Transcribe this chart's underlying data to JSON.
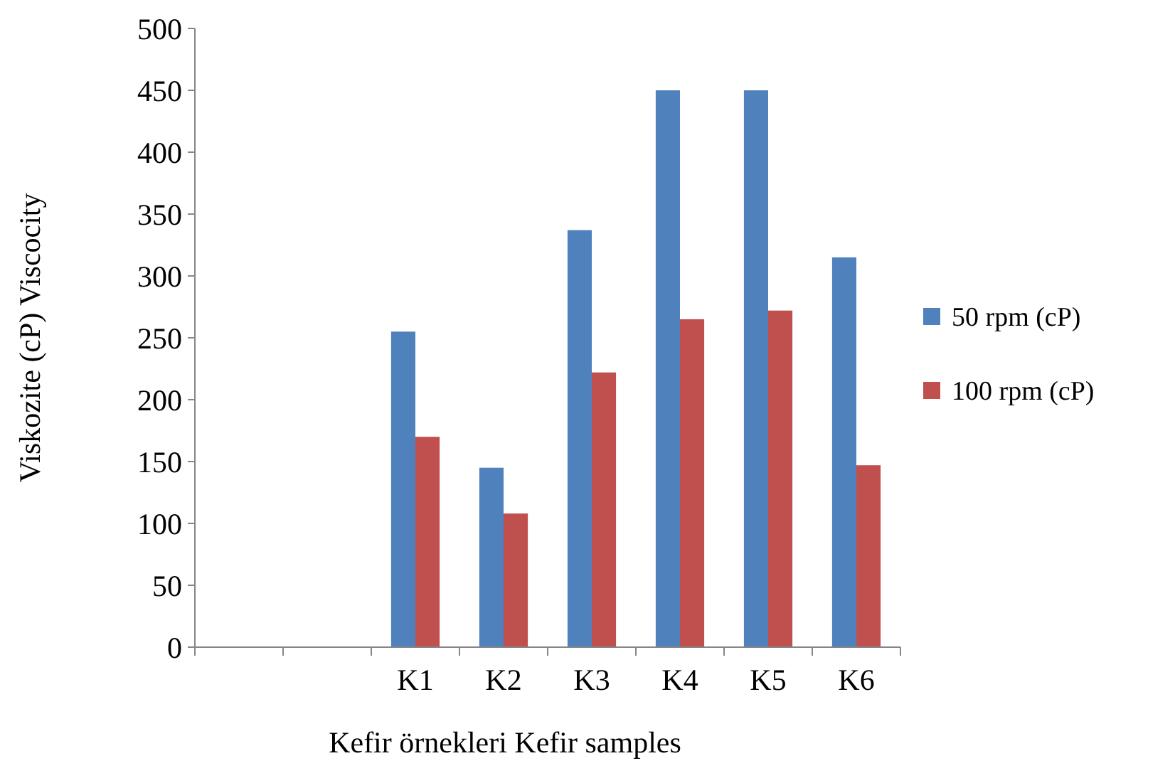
{
  "chart_data": {
    "type": "bar",
    "xlabel": "Kefir  örnekleri  Kefir samples",
    "ylabel": "Viskozite  (cP) Viscocity",
    "categories": [
      null,
      null,
      "K1",
      "K2",
      "K3",
      "K4",
      "K5",
      "K6"
    ],
    "series": [
      {
        "name": "50 rpm (cP)",
        "color": "#4f81bd",
        "values": [
          null,
          null,
          255,
          145,
          337,
          450,
          450,
          315
        ]
      },
      {
        "name": "100 rpm (cP)",
        "color": "#c0504d",
        "values": [
          null,
          null,
          170,
          108,
          222,
          265,
          272,
          147
        ]
      }
    ],
    "ylim": [
      0,
      500
    ],
    "yticks": [
      0,
      50,
      100,
      150,
      200,
      250,
      300,
      350,
      400,
      450,
      500
    ],
    "grid": false,
    "legend": "right"
  }
}
